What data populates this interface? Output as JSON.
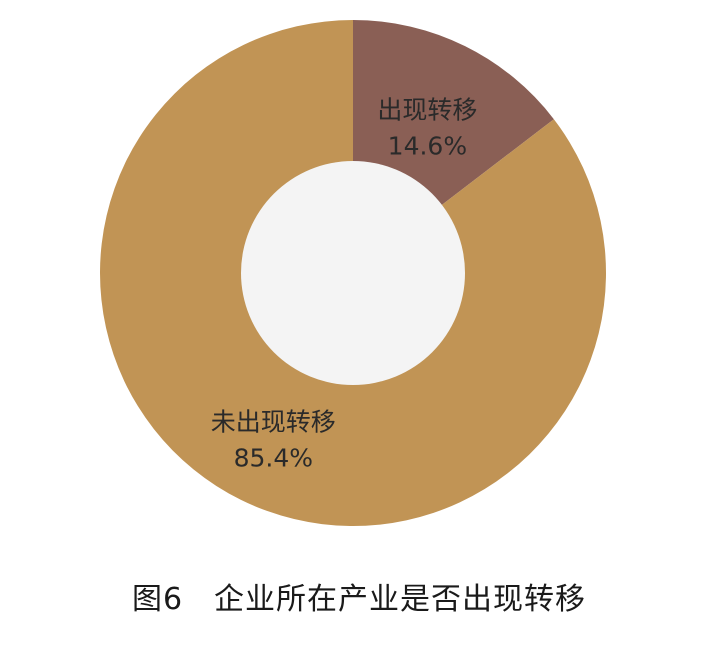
{
  "chart_data": {
    "type": "pie",
    "donut": true,
    "title": "图6　企业所在产业是否出现转移",
    "slices": [
      {
        "label": "出现转移",
        "value": 14.6,
        "value_label": "14.6%",
        "color": "#8a5f55"
      },
      {
        "label": "未出现转移",
        "value": 85.4,
        "value_label": "85.4%",
        "color": "#c19455"
      }
    ],
    "center_color": "#f4f4f4",
    "label_color": "#2a2a2a"
  }
}
